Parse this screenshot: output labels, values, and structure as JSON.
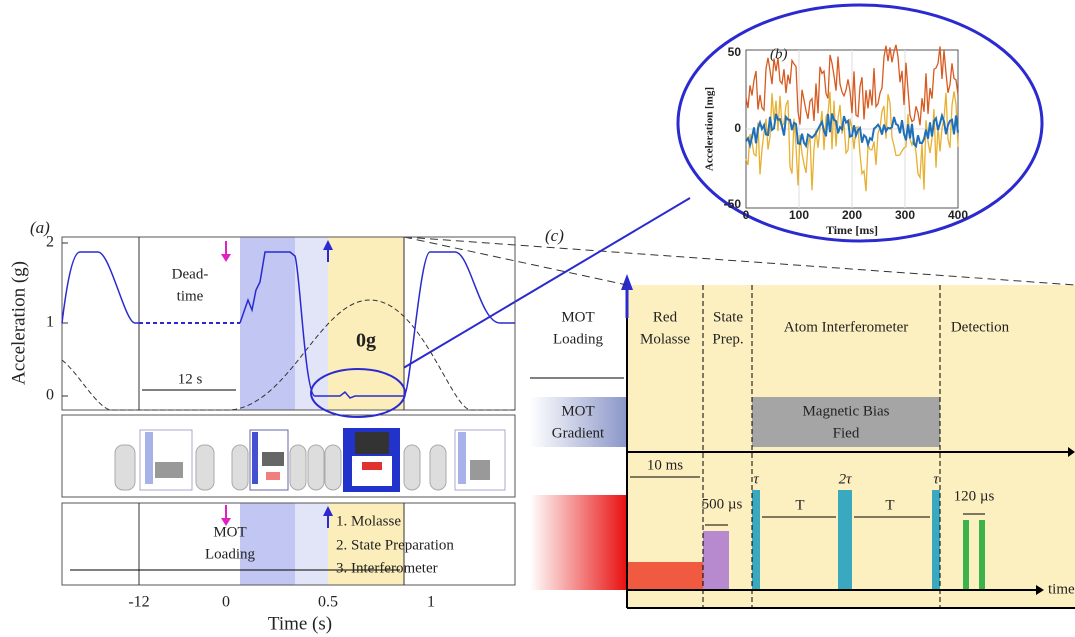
{
  "panel_a": {
    "label": "(a)",
    "y_axis_label": "Acceleration (g)",
    "y_ticks": [
      "2",
      "1",
      "0"
    ],
    "x_ticks": [
      "-12",
      "0",
      "0.5",
      "1"
    ],
    "x_axis_label": "Time (s)",
    "dead_time": [
      "Dead-",
      "time"
    ],
    "interval": "12 s",
    "zero_g": "0g",
    "mot_loading": [
      "MOT",
      "Loading"
    ],
    "steps": [
      "1. Molasse",
      "2. State Preparation",
      "3. Interferometer"
    ]
  },
  "panel_b": {
    "label": "(b)",
    "y_axis_label": "Acceleration [mg]",
    "y_ticks": [
      "50",
      "0",
      "-50"
    ],
    "x_ticks": [
      "0",
      "100",
      "200",
      "300",
      "400"
    ],
    "x_axis_label": "Time [ms]"
  },
  "panel_c": {
    "label": "(c)",
    "mot_loading": [
      "MOT",
      "Loading"
    ],
    "mot_gradient": [
      "MOT",
      "Gradient"
    ],
    "red_molasse": [
      "Red",
      "Molasse"
    ],
    "state_prep": [
      "State",
      "Prep."
    ],
    "interferometer": "Atom Interferometer",
    "detection": "Detection",
    "bias": [
      "Magnetic Bias",
      "Fied"
    ],
    "durations": [
      "10 ms",
      "500 µs",
      "T",
      "T",
      "120 µs"
    ],
    "pulses": [
      "τ",
      "2τ",
      "τ"
    ],
    "time_axis": "time"
  }
}
